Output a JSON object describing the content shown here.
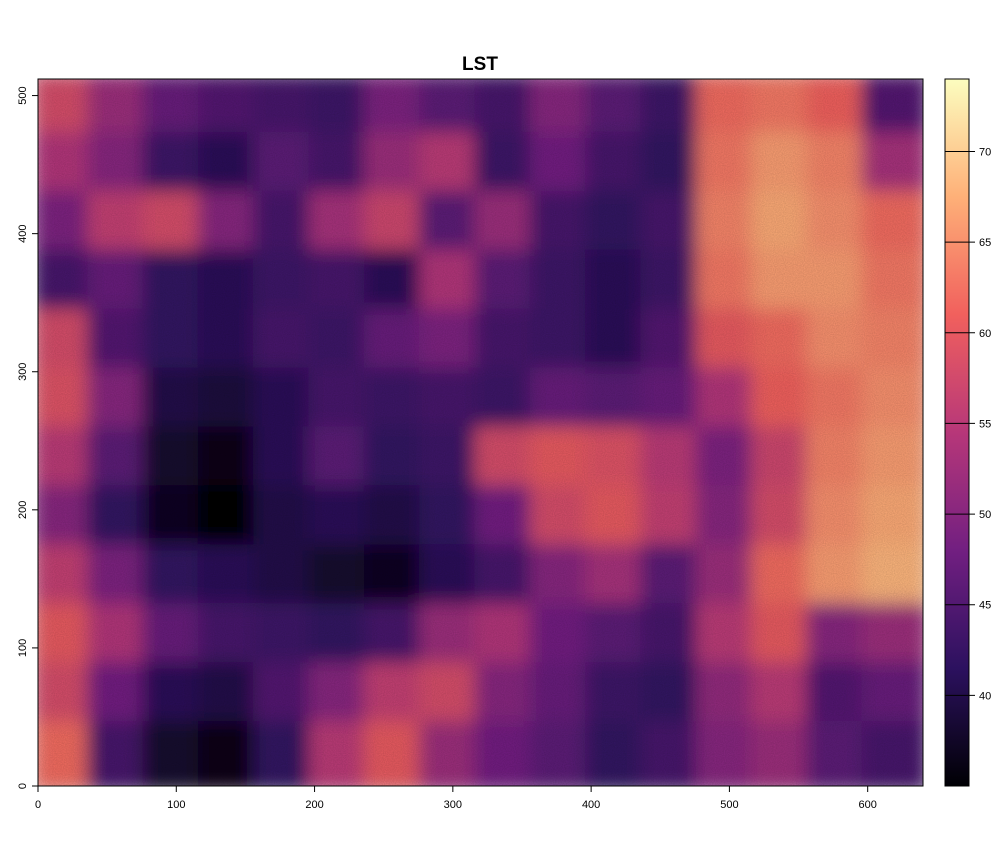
{
  "chart_data": {
    "type": "heatmap",
    "title": "LST",
    "xlabel": "",
    "ylabel": "",
    "xlim": [
      0,
      640
    ],
    "ylim": [
      0,
      512
    ],
    "x_ticks": [
      "0",
      "100",
      "200",
      "300",
      "400",
      "500",
      "600"
    ],
    "y_ticks": [
      "0",
      "100",
      "200",
      "300",
      "400",
      "500"
    ],
    "x_tick_values": [
      0,
      100,
      200,
      300,
      400,
      500,
      600
    ],
    "y_tick_values": [
      0,
      100,
      200,
      300,
      400,
      500
    ],
    "colorbar": {
      "range": [
        35,
        74
      ],
      "ticks": [
        "40",
        "45",
        "50",
        "55",
        "60",
        "65",
        "70"
      ],
      "tick_values": [
        40,
        45,
        50,
        55,
        60,
        65,
        70
      ],
      "palette": "magma",
      "stops": [
        "#000004",
        "#2c115f",
        "#721f81",
        "#b73779",
        "#f1605d",
        "#feb078",
        "#fcfdbf"
      ]
    },
    "grid": false,
    "legend": "colorbar-right",
    "value_grid": {
      "description_rows_top_to_bottom": "y from 512 (top) to 0 (bottom), x from 0 to 640",
      "nx": 16,
      "ny": 12,
      "values": [
        [
          58,
          52,
          47,
          45,
          44,
          43,
          49,
          46,
          44,
          50,
          46,
          43,
          62,
          63,
          61,
          45
        ],
        [
          54,
          50,
          43,
          41,
          46,
          44,
          52,
          55,
          43,
          48,
          44,
          42,
          63,
          66,
          64,
          53
        ],
        [
          49,
          56,
          58,
          50,
          44,
          53,
          57,
          46,
          52,
          44,
          42,
          44,
          64,
          67,
          65,
          62
        ],
        [
          44,
          47,
          42,
          41,
          43,
          44,
          41,
          54,
          46,
          43,
          41,
          43,
          63,
          66,
          66,
          63
        ],
        [
          58,
          45,
          42,
          41,
          44,
          43,
          47,
          49,
          44,
          43,
          41,
          45,
          60,
          62,
          65,
          64
        ],
        [
          59,
          50,
          40,
          39,
          41,
          44,
          43,
          44,
          43,
          47,
          46,
          47,
          54,
          61,
          63,
          65
        ],
        [
          55,
          46,
          38,
          36,
          41,
          46,
          42,
          43,
          58,
          60,
          59,
          55,
          49,
          57,
          64,
          66
        ],
        [
          50,
          42,
          37,
          35,
          40,
          41,
          40,
          42,
          48,
          58,
          60,
          56,
          50,
          58,
          65,
          67
        ],
        [
          56,
          49,
          42,
          41,
          40,
          38,
          37,
          41,
          44,
          50,
          53,
          46,
          52,
          62,
          66,
          68
        ],
        [
          60,
          54,
          47,
          44,
          43,
          42,
          44,
          52,
          54,
          48,
          46,
          44,
          55,
          60,
          50,
          52
        ],
        [
          58,
          48,
          41,
          40,
          45,
          50,
          56,
          58,
          50,
          47,
          43,
          42,
          51,
          55,
          45,
          47
        ],
        [
          62,
          44,
          38,
          36,
          42,
          55,
          60,
          52,
          48,
          46,
          42,
          44,
          50,
          52,
          46,
          44
        ]
      ]
    }
  }
}
